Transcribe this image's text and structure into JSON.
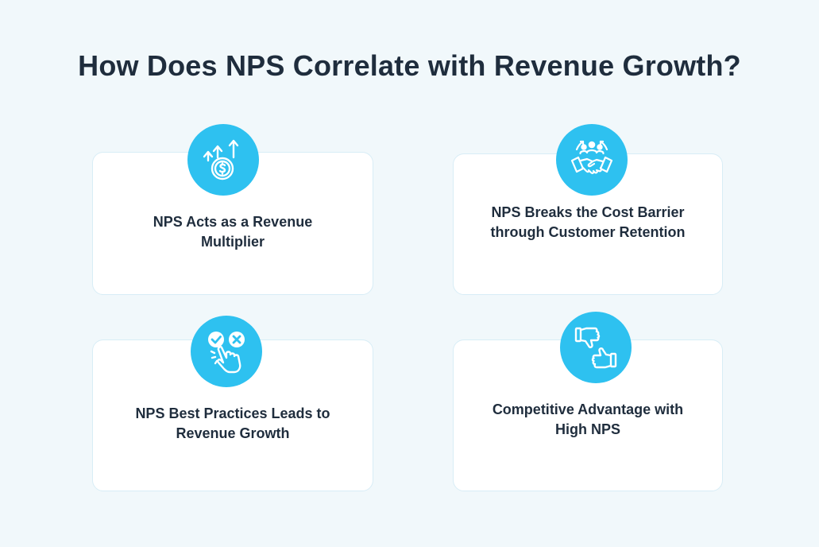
{
  "title": "How Does NPS Correlate with Revenue Growth?",
  "cards": [
    {
      "label": "NPS Acts as a Revenue Multiplier",
      "icon": "revenue-growth-icon"
    },
    {
      "label": "NPS Breaks the Cost Barrier through Customer Retention",
      "icon": "handshake-team-icon"
    },
    {
      "label": "NPS Best Practices Leads to Revenue Growth",
      "icon": "check-cross-choice-icon"
    },
    {
      "label": "Competitive Advantage with High NPS",
      "icon": "thumbs-down-up-icon"
    }
  ],
  "colors": {
    "background": "#f1f8fb",
    "accent": "#2ec1f0",
    "text": "#1f2d3d",
    "card_border": "#d8edf6"
  }
}
